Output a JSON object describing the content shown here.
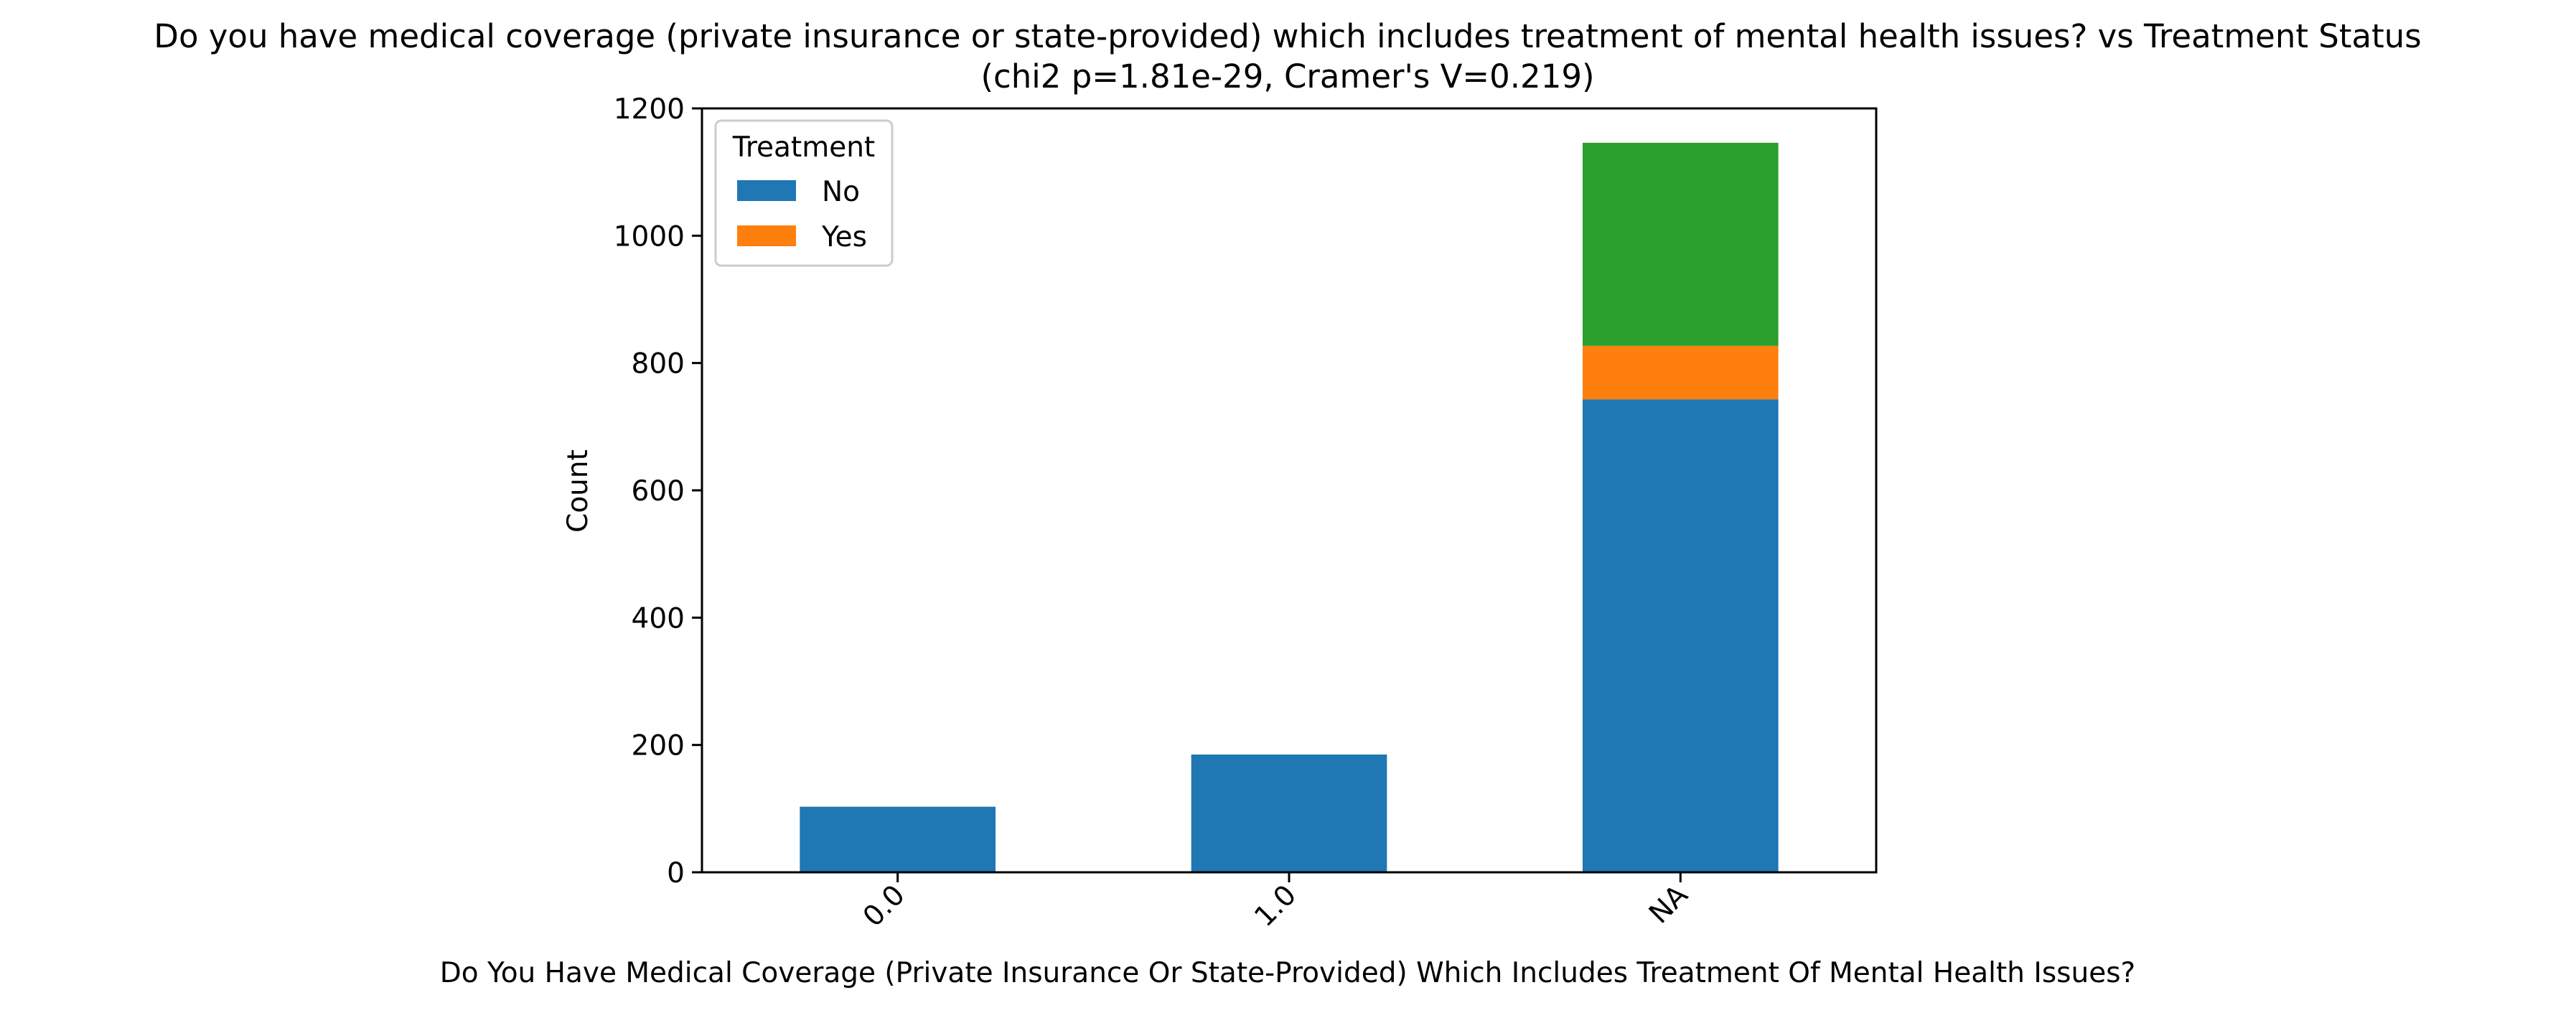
{
  "chart_data": {
    "type": "bar",
    "stacked": true,
    "title": "Do you have medical coverage (private insurance or state-provided) which includes treatment of  mental health issues? vs Treatment Status",
    "subtitle": "(chi2 p=1.81e-29, Cramer's V=0.219)",
    "xlabel": "Do You Have Medical Coverage (Private Insurance Or State-Provided) Which Includes Treatment Of  Mental Health Issues?",
    "ylabel": "Count",
    "categories": [
      "0.0",
      "1.0",
      "NA"
    ],
    "series": [
      {
        "name": "No",
        "color": "#1f77b4",
        "values": [
          103,
          185,
          743
        ]
      },
      {
        "name": "Yes",
        "color": "#ff7f0e",
        "values": [
          0,
          0,
          84
        ]
      },
      {
        "color": "#2ca02c",
        "values": [
          0,
          0,
          319
        ]
      }
    ],
    "ylim": [
      0,
      1200
    ],
    "yticks": [
      0,
      200,
      400,
      600,
      800,
      1000,
      1200
    ],
    "grid": false,
    "legend": {
      "title": "Treatment",
      "placement": "top-left"
    }
  }
}
